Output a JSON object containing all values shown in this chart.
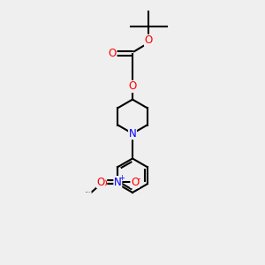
{
  "bg_color": "#efefef",
  "bond_color": "#000000",
  "atom_colors": {
    "O": "#ff0000",
    "N": "#0000ff",
    "C": "#000000"
  },
  "bond_width": 1.5,
  "dbo": 0.055,
  "font_size": 8.5,
  "xlim": [
    0,
    10
  ],
  "ylim": [
    0,
    13
  ],
  "figsize": [
    3.0,
    3.0
  ],
  "dpi": 100
}
